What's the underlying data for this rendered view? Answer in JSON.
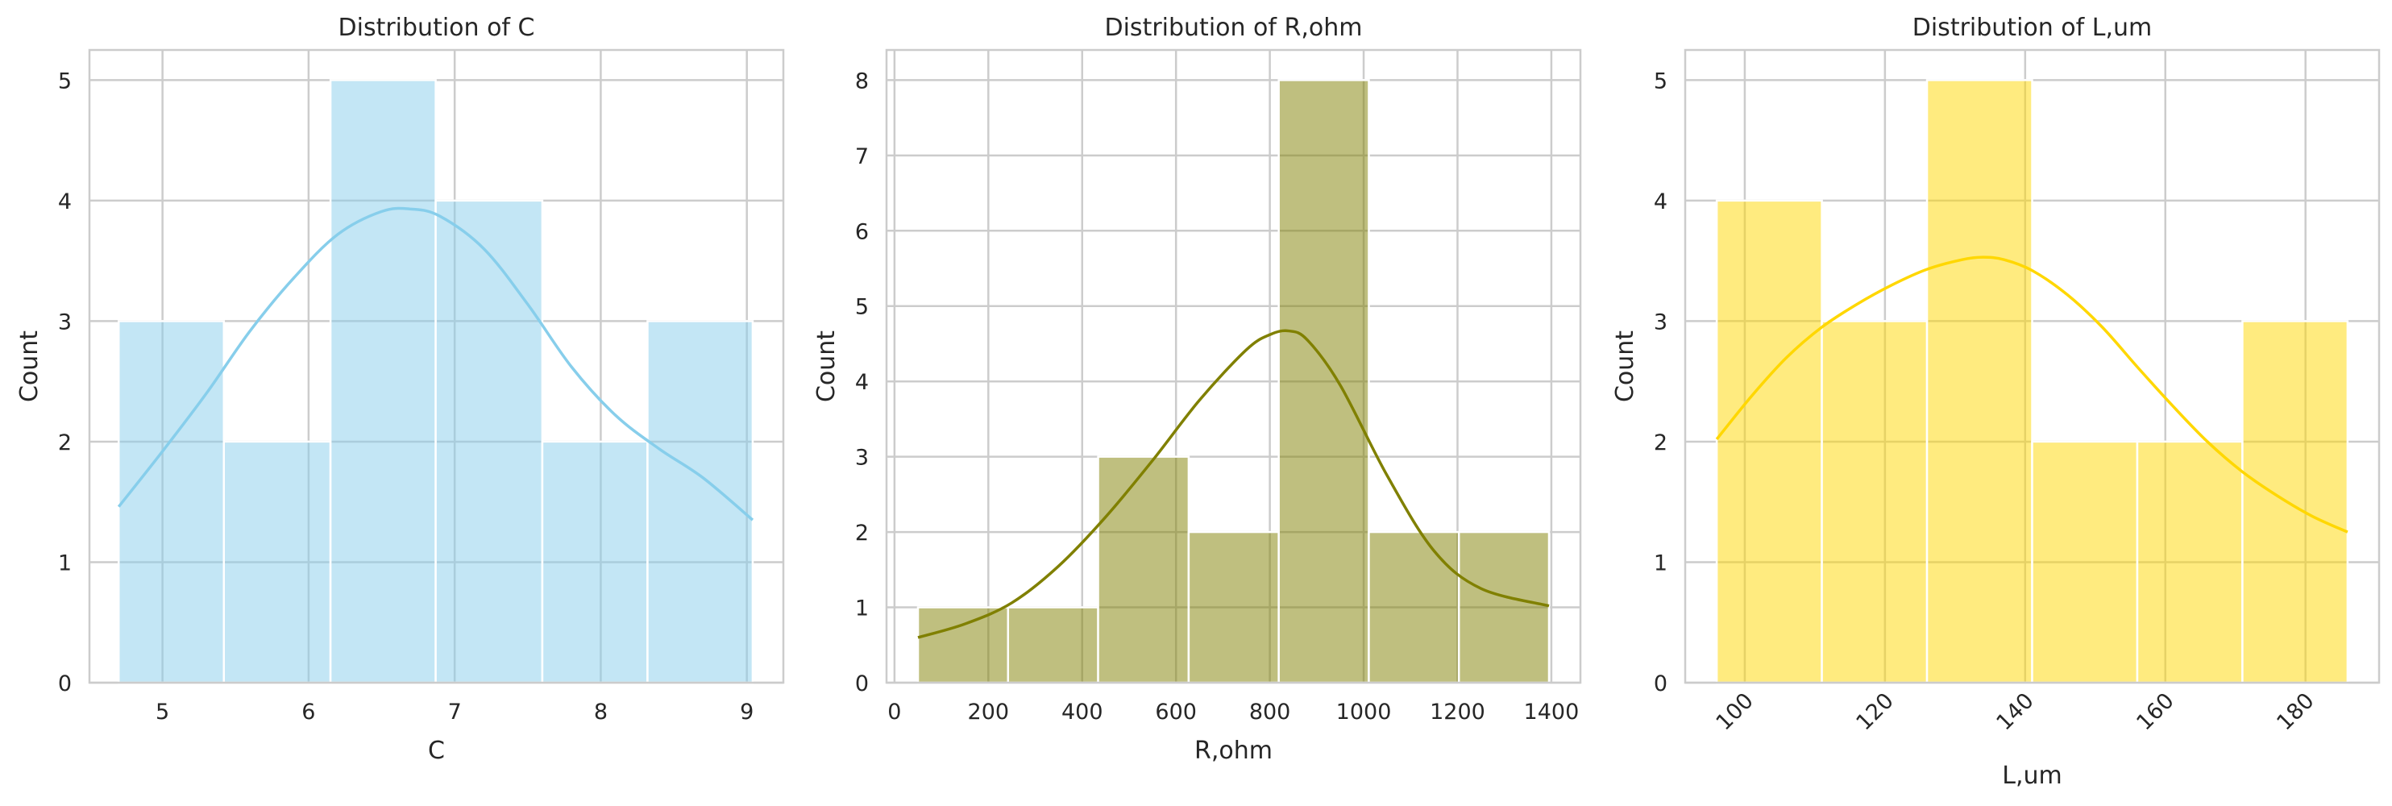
{
  "chart_data": [
    {
      "type": "histogram",
      "title": "Distribution of C",
      "xlabel": "C",
      "ylabel": "Count",
      "color": "#87ceeb",
      "bin_edges": [
        4.7,
        5.42,
        6.15,
        6.87,
        7.6,
        8.32,
        9.04
      ],
      "counts": [
        3,
        2,
        5,
        4,
        2,
        3
      ],
      "xlim": [
        4.5,
        9.25
      ],
      "ylim": [
        0,
        5.25
      ],
      "xticks": [
        5,
        6,
        7,
        8,
        9
      ],
      "yticks": [
        0,
        1,
        2,
        3,
        4,
        5
      ],
      "xtick_rotation": 0,
      "grid": true,
      "kde": {
        "x": [
          4.7,
          5.0,
          5.3,
          5.6,
          5.9,
          6.2,
          6.5,
          6.7,
          6.9,
          7.2,
          7.5,
          7.8,
          8.1,
          8.4,
          8.7,
          9.04
        ],
        "y": [
          1.46,
          1.92,
          2.4,
          2.92,
          3.36,
          3.72,
          3.91,
          3.93,
          3.87,
          3.6,
          3.14,
          2.62,
          2.22,
          1.94,
          1.7,
          1.35
        ]
      }
    },
    {
      "type": "histogram",
      "title": "Distribution of R,ohm",
      "xlabel": "R,ohm",
      "ylabel": "Count",
      "color": "#808000",
      "bin_edges": [
        50,
        242,
        434,
        627,
        819,
        1011,
        1203,
        1395
      ],
      "counts": [
        1,
        1,
        3,
        2,
        8,
        2,
        2
      ],
      "xlim": [
        -17,
        1462
      ],
      "ylim": [
        0,
        8.4
      ],
      "xticks": [
        0,
        200,
        400,
        600,
        800,
        1000,
        1200,
        1400
      ],
      "yticks": [
        0,
        1,
        2,
        3,
        4,
        5,
        6,
        7,
        8
      ],
      "xtick_rotation": 0,
      "grid": true,
      "kde": {
        "x": [
          50,
          150,
          250,
          350,
          450,
          550,
          650,
          750,
          800,
          840,
          880,
          950,
          1050,
          1150,
          1250,
          1395
        ],
        "y": [
          0.6,
          0.78,
          1.06,
          1.55,
          2.2,
          2.95,
          3.75,
          4.42,
          4.62,
          4.67,
          4.55,
          3.95,
          2.75,
          1.75,
          1.25,
          1.02
        ]
      }
    },
    {
      "type": "histogram",
      "title": "Distribution of L,um",
      "xlabel": "L,um",
      "ylabel": "Count",
      "color": "#ffd700",
      "bin_edges": [
        96,
        111,
        126,
        141,
        156,
        171,
        186
      ],
      "counts": [
        4,
        3,
        5,
        2,
        2,
        3
      ],
      "xlim": [
        91.5,
        190.5
      ],
      "ylim": [
        0,
        5.25
      ],
      "xticks": [
        100,
        120,
        140,
        160,
        180
      ],
      "yticks": [
        0,
        1,
        2,
        3,
        4,
        5
      ],
      "xtick_rotation": -45,
      "grid": true,
      "kde": {
        "x": [
          96,
          101,
          106,
          111,
          116,
          121,
          126,
          131,
          134,
          137,
          141,
          146,
          151,
          156,
          161,
          166,
          171,
          176,
          181,
          186
        ],
        "y": [
          2.02,
          2.38,
          2.7,
          2.95,
          3.14,
          3.3,
          3.43,
          3.51,
          3.53,
          3.51,
          3.42,
          3.22,
          2.95,
          2.62,
          2.3,
          2.0,
          1.75,
          1.55,
          1.38,
          1.25
        ]
      }
    }
  ]
}
